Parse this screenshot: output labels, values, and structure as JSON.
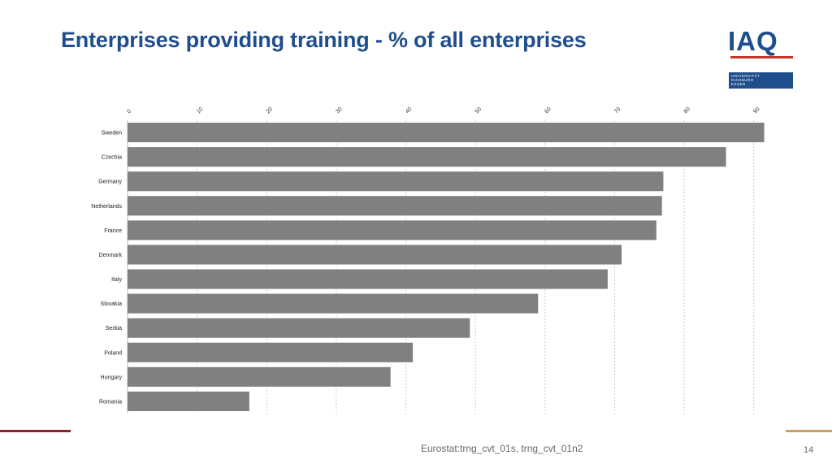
{
  "slide": {
    "title": "Enterprises providing training - % of all enterprises",
    "source": "Eurostat:trng_cvt_01s, trng_cvt_01n2",
    "page_number": "14"
  },
  "logos": {
    "iaq": "IAQ",
    "university_line1": "UNIVERSITÄT",
    "university_line2": "DUISBURG",
    "university_line3": "ESSEN"
  },
  "colors": {
    "title": "#1f4e8c",
    "bar": "#808080",
    "grid": "#cccccc",
    "accent_left": "#8b2332",
    "accent_right": "#c8a165"
  },
  "chart_data": {
    "type": "bar",
    "orientation": "horizontal",
    "categories": [
      "Sweden",
      "Czechia",
      "Germany",
      "Netherlands",
      "France",
      "Denmark",
      "Italy",
      "Slovakia",
      "Serbia",
      "Poland",
      "Hungary",
      "Romania"
    ],
    "values": [
      91.5,
      86,
      77,
      76.8,
      76,
      71,
      69,
      59,
      49.2,
      41,
      37.8,
      17.5
    ],
    "xticks": [
      "0",
      "10",
      "20",
      "30",
      "40",
      "50",
      "60",
      "70",
      "80",
      "90"
    ],
    "xlim": [
      0,
      94
    ],
    "axis_position": "top",
    "grid": true,
    "title": "",
    "xlabel": "",
    "ylabel": ""
  }
}
